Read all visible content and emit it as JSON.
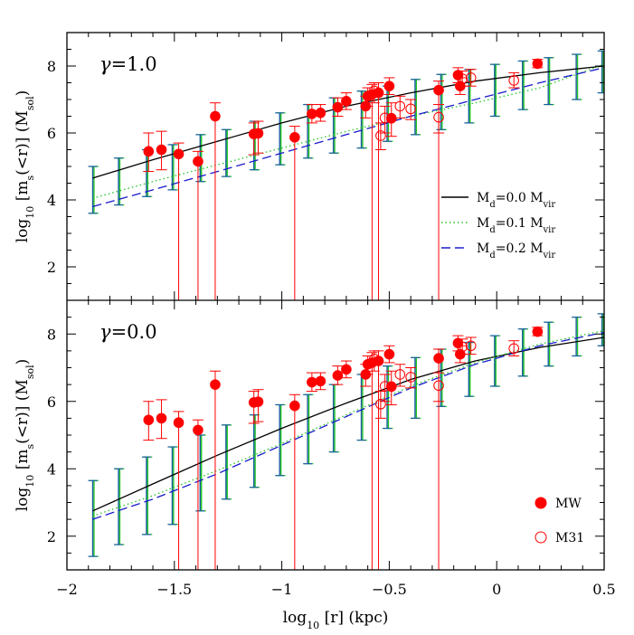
{
  "chart_data": {
    "type": "scatter",
    "x_axis": {
      "label_main": "log",
      "label_sub": "10",
      "label_rest": " [r] (kpc)",
      "range": [
        -2,
        0.5
      ],
      "ticks": [
        {
          "v": -2,
          "label": "−2"
        },
        {
          "v": -1.5,
          "label": "−1.5"
        },
        {
          "v": -1,
          "label": "−1"
        },
        {
          "v": -0.5,
          "label": "−0.5"
        },
        {
          "v": 0,
          "label": "0"
        },
        {
          "v": 0.5,
          "label": "0.5"
        }
      ]
    },
    "panels": [
      {
        "label_gamma": "γ",
        "label_value": "=1.0",
        "ylabel": {
          "a": "log",
          "sub1": "10",
          "b": " [m",
          "sub2": "s",
          "c": "(<r)] (M",
          "sub3": "sol",
          "d": ")"
        },
        "yrange": [
          1,
          9
        ],
        "yticks": [
          2,
          4,
          6,
          8
        ],
        "models": [
          {
            "style": "solid",
            "color": "#000000",
            "x": [
              -1.88,
              -1.6,
              -1.3,
              -1.0,
              -0.7,
              -0.4,
              -0.1,
              0.2,
              0.5
            ],
            "y": [
              4.65,
              5.2,
              5.75,
              6.3,
              6.8,
              7.2,
              7.55,
              7.8,
              8.0
            ]
          },
          {
            "style": "dotted",
            "color": "#22c622",
            "x": [
              -1.88,
              -1.6,
              -1.3,
              -1.0,
              -0.7,
              -0.4,
              -0.1,
              0.2,
              0.5
            ],
            "y": [
              4.05,
              4.55,
              5.05,
              5.55,
              6.05,
              6.5,
              6.9,
              7.35,
              8.05
            ]
          },
          {
            "style": "dashed",
            "color": "#1a1acc",
            "x": [
              -1.88,
              -1.6,
              -1.3,
              -1.0,
              -0.7,
              -0.4,
              -0.1,
              0.2,
              0.5
            ],
            "y": [
              3.8,
              4.3,
              4.85,
              5.4,
              5.95,
              6.5,
              7.0,
              7.5,
              7.95
            ]
          }
        ],
        "model_errors": [
          {
            "x": -1.88,
            "lo": 3.6,
            "hi": 5.0
          },
          {
            "x": -1.76,
            "lo": 3.85,
            "hi": 5.25
          },
          {
            "x": -1.63,
            "lo": 4.1,
            "hi": 5.5
          },
          {
            "x": -1.51,
            "lo": 4.3,
            "hi": 5.65
          },
          {
            "x": -1.38,
            "lo": 4.55,
            "hi": 5.95
          },
          {
            "x": -1.26,
            "lo": 4.7,
            "hi": 6.1
          },
          {
            "x": -1.13,
            "lo": 4.9,
            "hi": 6.35
          },
          {
            "x": -1.01,
            "lo": 5.05,
            "hi": 6.6
          },
          {
            "x": -0.88,
            "lo": 5.25,
            "hi": 6.85
          },
          {
            "x": -0.76,
            "lo": 5.4,
            "hi": 7.05
          },
          {
            "x": -0.63,
            "lo": 5.55,
            "hi": 7.25
          },
          {
            "x": -0.51,
            "lo": 5.75,
            "hi": 7.4
          },
          {
            "x": -0.38,
            "lo": 5.95,
            "hi": 7.6
          },
          {
            "x": -0.26,
            "lo": 6.1,
            "hi": 7.75
          },
          {
            "x": -0.13,
            "lo": 6.3,
            "hi": 7.9
          },
          {
            "x": -0.01,
            "lo": 6.5,
            "hi": 8.05
          },
          {
            "x": 0.12,
            "lo": 6.7,
            "hi": 8.15
          },
          {
            "x": 0.24,
            "lo": 6.85,
            "hi": 8.25
          },
          {
            "x": 0.37,
            "lo": 7.0,
            "hi": 8.35
          },
          {
            "x": 0.49,
            "lo": 7.2,
            "hi": 8.45
          }
        ]
      },
      {
        "label_gamma": "γ",
        "label_value": "=0.0",
        "ylabel": {
          "a": "log",
          "sub1": "10",
          "b": " [m",
          "sub2": "s",
          "c": "(<r)] (M",
          "sub3": "sol",
          "d": ")"
        },
        "yrange": [
          1,
          9
        ],
        "yticks": [
          2,
          4,
          6,
          8
        ],
        "models": [
          {
            "style": "solid",
            "color": "#000000",
            "x": [
              -1.88,
              -1.6,
              -1.3,
              -1.0,
              -0.7,
              -0.4,
              -0.1,
              0.2,
              0.5
            ],
            "y": [
              2.75,
              3.55,
              4.4,
              5.2,
              5.95,
              6.65,
              7.2,
              7.6,
              7.9
            ]
          },
          {
            "style": "dotted",
            "color": "#22c622",
            "x": [
              -1.88,
              -1.6,
              -1.3,
              -1.0,
              -0.7,
              -0.4,
              -0.1,
              0.2,
              0.5
            ],
            "y": [
              2.6,
              3.2,
              3.95,
              4.75,
              5.6,
              6.45,
              7.15,
              7.7,
              8.1
            ]
          },
          {
            "style": "dashed",
            "color": "#1a1acc",
            "x": [
              -1.88,
              -1.6,
              -1.3,
              -1.0,
              -0.7,
              -0.4,
              -0.1,
              0.2,
              0.5
            ],
            "y": [
              2.5,
              3.1,
              3.85,
              4.7,
              5.55,
              6.4,
              7.1,
              7.65,
              8.05
            ]
          }
        ],
        "model_errors": [
          {
            "x": -1.88,
            "lo": 1.4,
            "hi": 3.65
          },
          {
            "x": -1.76,
            "lo": 1.75,
            "hi": 4.0
          },
          {
            "x": -1.63,
            "lo": 2.05,
            "hi": 4.35
          },
          {
            "x": -1.51,
            "lo": 2.35,
            "hi": 4.65
          },
          {
            "x": -1.38,
            "lo": 2.75,
            "hi": 5.0
          },
          {
            "x": -1.26,
            "lo": 3.1,
            "hi": 5.3
          },
          {
            "x": -1.13,
            "lo": 3.45,
            "hi": 5.6
          },
          {
            "x": -1.01,
            "lo": 3.8,
            "hi": 5.9
          },
          {
            "x": -0.88,
            "lo": 4.15,
            "hi": 6.2
          },
          {
            "x": -0.76,
            "lo": 4.5,
            "hi": 6.5
          },
          {
            "x": -0.63,
            "lo": 4.85,
            "hi": 6.8
          },
          {
            "x": -0.51,
            "lo": 5.2,
            "hi": 7.05
          },
          {
            "x": -0.38,
            "lo": 5.5,
            "hi": 7.3
          },
          {
            "x": -0.26,
            "lo": 5.85,
            "hi": 7.55
          },
          {
            "x": -0.13,
            "lo": 6.15,
            "hi": 7.75
          },
          {
            "x": -0.01,
            "lo": 6.45,
            "hi": 7.95
          },
          {
            "x": 0.12,
            "lo": 6.75,
            "hi": 8.15
          },
          {
            "x": 0.24,
            "lo": 7.05,
            "hi": 8.35
          },
          {
            "x": 0.37,
            "lo": 7.35,
            "hi": 8.5
          },
          {
            "x": 0.49,
            "lo": 7.65,
            "hi": 8.6
          }
        ]
      }
    ],
    "observed": [
      {
        "x": -1.62,
        "y": 5.45,
        "lo": 4.85,
        "hi": 6.0,
        "g": "MW"
      },
      {
        "x": -1.56,
        "y": 5.5,
        "lo": 4.9,
        "hi": 6.05,
        "g": "MW"
      },
      {
        "x": -1.48,
        "y": 5.37,
        "lo": 1.0,
        "hi": 5.7,
        "g": "MW"
      },
      {
        "x": -1.39,
        "y": 5.15,
        "lo": 1.0,
        "hi": 5.45,
        "g": "MW"
      },
      {
        "x": -1.31,
        "y": 6.5,
        "lo": 1.0,
        "hi": 6.9,
        "g": "MW"
      },
      {
        "x": -1.13,
        "y": 5.97,
        "lo": 5.35,
        "hi": 6.3,
        "g": "MW"
      },
      {
        "x": -1.11,
        "y": 5.99,
        "lo": 5.4,
        "hi": 6.35,
        "g": "MW"
      },
      {
        "x": -0.94,
        "y": 5.87,
        "lo": 1.0,
        "hi": 6.2,
        "g": "MW"
      },
      {
        "x": -0.86,
        "y": 6.57,
        "lo": 6.3,
        "hi": 6.85,
        "g": "MW"
      },
      {
        "x": -0.82,
        "y": 6.6,
        "lo": 6.35,
        "hi": 6.85,
        "g": "MW"
      },
      {
        "x": -0.74,
        "y": 6.77,
        "lo": 6.5,
        "hi": 7.05,
        "g": "MW"
      },
      {
        "x": -0.7,
        "y": 6.95,
        "lo": 6.7,
        "hi": 7.2,
        "g": "MW"
      },
      {
        "x": -0.61,
        "y": 6.8,
        "lo": 6.45,
        "hi": 7.1,
        "g": "MW"
      },
      {
        "x": -0.6,
        "y": 7.1,
        "lo": 6.8,
        "hi": 7.35,
        "g": "MW"
      },
      {
        "x": -0.58,
        "y": 7.15,
        "lo": 1.0,
        "hi": 7.45,
        "g": "MW"
      },
      {
        "x": -0.55,
        "y": 7.2,
        "lo": 1.0,
        "hi": 7.5,
        "g": "MW"
      },
      {
        "x": -0.5,
        "y": 7.4,
        "lo": 7.15,
        "hi": 7.65,
        "g": "MW"
      },
      {
        "x": -0.49,
        "y": 6.44,
        "lo": 5.9,
        "hi": 6.9,
        "g": "MW"
      },
      {
        "x": -0.27,
        "y": 7.28,
        "lo": 1.0,
        "hi": 7.55,
        "g": "MW"
      },
      {
        "x": -0.18,
        "y": 7.73,
        "lo": 7.5,
        "hi": 7.95,
        "g": "MW"
      },
      {
        "x": -0.17,
        "y": 7.4,
        "lo": 7.15,
        "hi": 7.65,
        "g": "MW"
      },
      {
        "x": 0.19,
        "y": 8.07,
        "lo": 7.95,
        "hi": 8.2,
        "g": "MW"
      },
      {
        "x": -0.57,
        "y": 7.26,
        "lo": 6.9,
        "hi": 7.5,
        "g": "M31"
      },
      {
        "x": -0.54,
        "y": 5.92,
        "lo": 5.5,
        "hi": 6.3,
        "g": "M31"
      },
      {
        "x": -0.52,
        "y": 6.45,
        "lo": 6.0,
        "hi": 6.8,
        "g": "M31"
      },
      {
        "x": -0.45,
        "y": 6.8,
        "lo": 6.45,
        "hi": 7.1,
        "g": "M31"
      },
      {
        "x": -0.4,
        "y": 6.72,
        "lo": 6.4,
        "hi": 7.0,
        "g": "M31"
      },
      {
        "x": -0.27,
        "y": 6.47,
        "lo": 6.0,
        "hi": 6.85,
        "g": "M31"
      },
      {
        "x": -0.16,
        "y": 7.62,
        "lo": 7.4,
        "hi": 7.85,
        "g": "M31"
      },
      {
        "x": -0.12,
        "y": 7.65,
        "lo": 7.4,
        "hi": 7.9,
        "g": "M31"
      },
      {
        "x": 0.08,
        "y": 7.57,
        "lo": 7.35,
        "hi": 7.8,
        "g": "M31"
      }
    ],
    "legend_models": [
      {
        "style": "solid",
        "color": "#000000",
        "m": "M",
        "sub": "d",
        "val": "=0.0  M",
        "sub2": "vir"
      },
      {
        "style": "dotted",
        "color": "#22c622",
        "m": "M",
        "sub": "d",
        "val": "=0.1  M",
        "sub2": "vir"
      },
      {
        "style": "dashed",
        "color": "#1a1acc",
        "m": "M",
        "sub": "d",
        "val": "=0.2  M",
        "sub2": "vir"
      }
    ],
    "legend_points": [
      {
        "marker": "filled-circle",
        "label": "MW"
      },
      {
        "marker": "open-circle",
        "label": "M31"
      }
    ],
    "colors": {
      "observed": "#ff0000",
      "errbar_green": "#22c622",
      "errbar_blue": "#1a5fa0"
    }
  }
}
